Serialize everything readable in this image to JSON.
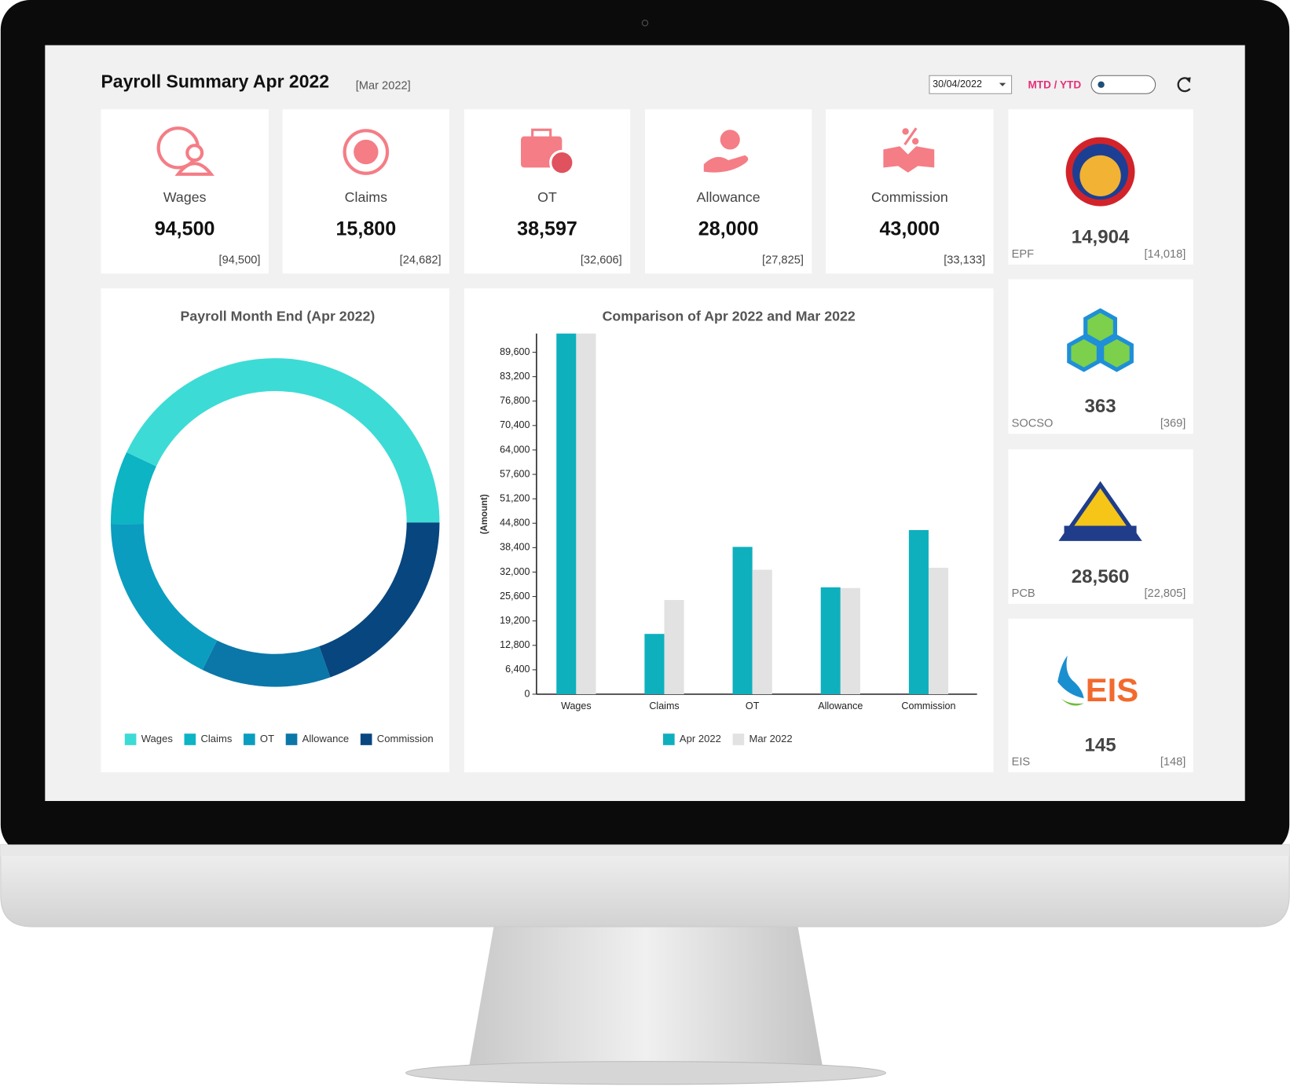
{
  "header": {
    "title": "Payroll Summary Apr 2022",
    "compare": "[Mar 2022]",
    "date": "30/04/2022",
    "toggle_label": "MTD / YTD"
  },
  "cards": [
    {
      "label": "Wages",
      "value": "94,500",
      "previous": "[94,500]"
    },
    {
      "label": "Claims",
      "value": "15,800",
      "previous": "[24,682]"
    },
    {
      "label": "OT",
      "value": "38,597",
      "previous": "[32,606]"
    },
    {
      "label": "Allowance",
      "value": "28,000",
      "previous": "[27,825]"
    },
    {
      "label": "Commission",
      "value": "43,000",
      "previous": "[33,133]"
    }
  ],
  "statutory": [
    {
      "label": "EPF",
      "value": "14,904",
      "previous": "[14,018]"
    },
    {
      "label": "SOCSO",
      "value": "363",
      "previous": "[369]"
    },
    {
      "label": "PCB",
      "value": "28,560",
      "previous": "[22,805]"
    },
    {
      "label": "EIS",
      "value": "145",
      "previous": "[148]"
    }
  ],
  "chart_data": [
    {
      "type": "donut",
      "title": "Payroll Month End (Apr 2022)",
      "categories": [
        "Wages",
        "Claims",
        "OT",
        "Allowance",
        "Commission"
      ],
      "values": [
        94500,
        15800,
        38597,
        28000,
        43000
      ],
      "colors": [
        "#3ddbd5",
        "#0cb4c4",
        "#0a9dc0",
        "#0b77a8",
        "#08467f"
      ]
    },
    {
      "type": "bar",
      "title": "Comparison of Apr 2022 and Mar 2022",
      "y_label": "(Amount)",
      "categories": [
        "Wages",
        "Claims",
        "OT",
        "Allowance",
        "Commission"
      ],
      "series": [
        {
          "name": "Apr 2022",
          "color": "#0eb0bd",
          "values": [
            94500,
            15800,
            38597,
            28000,
            43000
          ]
        },
        {
          "name": "Mar 2022",
          "color": "#e2e2e2",
          "values": [
            94500,
            24682,
            32606,
            27825,
            33133
          ]
        }
      ],
      "ylim": [
        0,
        94500
      ],
      "yticks": [
        0,
        {
          "value": 6400,
          "label": "6,400"
        },
        {
          "value": 12800,
          "label": "12,800"
        },
        {
          "value": 19200,
          "label": "19,200"
        },
        {
          "value": 25600,
          "label": "25,600"
        },
        {
          "value": 32000,
          "label": "32,000"
        },
        {
          "value": 38400,
          "label": "38,400"
        },
        {
          "value": 44800,
          "label": "44,800"
        },
        {
          "value": 51200,
          "label": "51,200"
        },
        {
          "value": 57600,
          "label": "57,600"
        },
        {
          "value": 64000,
          "label": "64,000"
        },
        {
          "value": 70400,
          "label": "70,400"
        },
        {
          "value": 76800,
          "label": "76,800"
        },
        {
          "value": 83200,
          "label": "83,200"
        },
        {
          "value": 89600,
          "label": "89,600"
        }
      ]
    }
  ]
}
